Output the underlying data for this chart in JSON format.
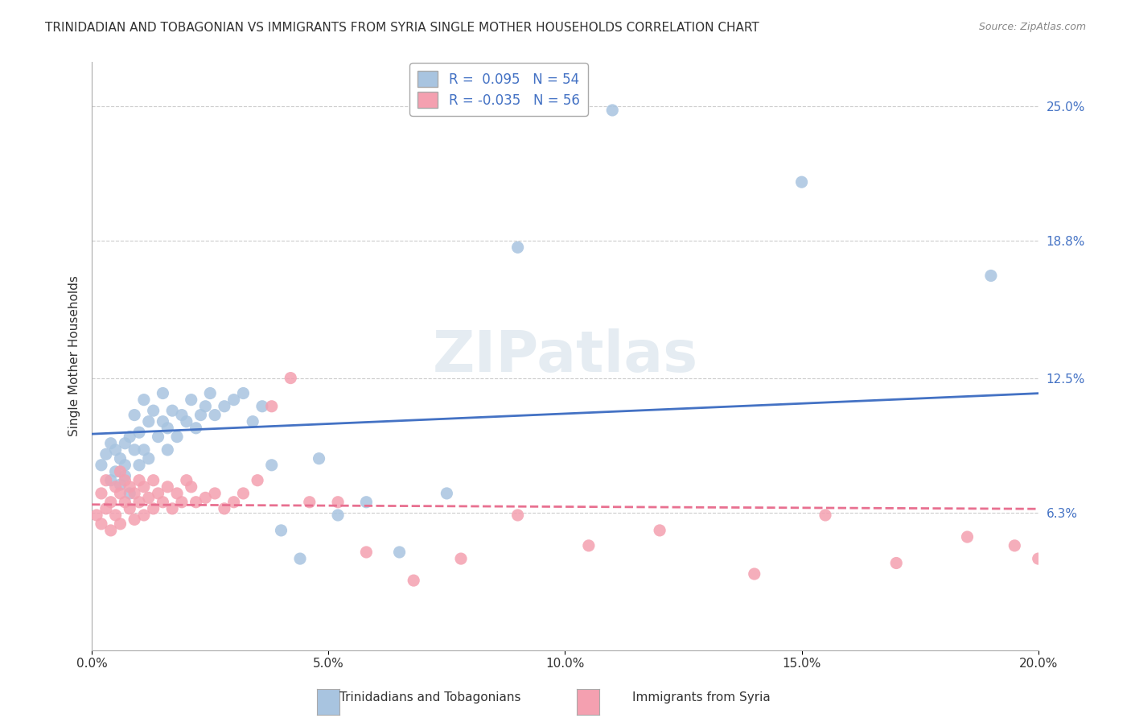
{
  "title": "TRINIDADIAN AND TOBAGONIAN VS IMMIGRANTS FROM SYRIA SINGLE MOTHER HOUSEHOLDS CORRELATION CHART",
  "source": "Source: ZipAtlas.com",
  "watermark": "ZIPatlas",
  "xlabel": "",
  "ylabel": "Single Mother Households",
  "xlim": [
    0.0,
    0.2
  ],
  "ylim": [
    0.0,
    0.27
  ],
  "xticks": [
    0.0,
    0.05,
    0.1,
    0.15,
    0.2
  ],
  "xticklabels": [
    "0.0%",
    "5.0%",
    "10.0%",
    "15.0%",
    "20.0%"
  ],
  "ytick_positions": [
    0.063,
    0.125,
    0.188,
    0.25
  ],
  "yticklabels": [
    "6.3%",
    "12.5%",
    "18.8%",
    "25.0%"
  ],
  "blue_R": 0.095,
  "blue_N": 54,
  "pink_R": -0.035,
  "pink_N": 56,
  "blue_color": "#a8c4e0",
  "pink_color": "#f4a0b0",
  "blue_line_color": "#4472c4",
  "pink_line_color": "#f4a0b0",
  "legend_label_blue": "Trinidadians and Tobagonians",
  "legend_label_pink": "Immigrants from Syria",
  "title_fontsize": 11,
  "axis_label_fontsize": 11,
  "tick_fontsize": 11,
  "legend_fontsize": 12,
  "blue_scatter_x": [
    0.002,
    0.003,
    0.004,
    0.004,
    0.005,
    0.005,
    0.006,
    0.006,
    0.007,
    0.007,
    0.007,
    0.008,
    0.008,
    0.009,
    0.009,
    0.01,
    0.01,
    0.011,
    0.011,
    0.012,
    0.012,
    0.013,
    0.014,
    0.015,
    0.015,
    0.016,
    0.016,
    0.017,
    0.018,
    0.019,
    0.02,
    0.021,
    0.022,
    0.023,
    0.024,
    0.025,
    0.026,
    0.028,
    0.03,
    0.032,
    0.034,
    0.036,
    0.038,
    0.04,
    0.044,
    0.048,
    0.052,
    0.058,
    0.065,
    0.075,
    0.09,
    0.11,
    0.15,
    0.19
  ],
  "blue_scatter_y": [
    0.085,
    0.09,
    0.095,
    0.078,
    0.082,
    0.092,
    0.088,
    0.076,
    0.095,
    0.085,
    0.08,
    0.098,
    0.072,
    0.092,
    0.108,
    0.085,
    0.1,
    0.092,
    0.115,
    0.088,
    0.105,
    0.11,
    0.098,
    0.105,
    0.118,
    0.092,
    0.102,
    0.11,
    0.098,
    0.108,
    0.105,
    0.115,
    0.102,
    0.108,
    0.112,
    0.118,
    0.108,
    0.112,
    0.115,
    0.118,
    0.105,
    0.112,
    0.085,
    0.055,
    0.042,
    0.088,
    0.062,
    0.068,
    0.045,
    0.072,
    0.185,
    0.248,
    0.215,
    0.172
  ],
  "pink_scatter_x": [
    0.001,
    0.002,
    0.002,
    0.003,
    0.003,
    0.004,
    0.004,
    0.005,
    0.005,
    0.006,
    0.006,
    0.006,
    0.007,
    0.007,
    0.008,
    0.008,
    0.009,
    0.009,
    0.01,
    0.01,
    0.011,
    0.011,
    0.012,
    0.013,
    0.013,
    0.014,
    0.015,
    0.016,
    0.017,
    0.018,
    0.019,
    0.02,
    0.021,
    0.022,
    0.024,
    0.026,
    0.028,
    0.03,
    0.032,
    0.035,
    0.038,
    0.042,
    0.046,
    0.052,
    0.058,
    0.068,
    0.078,
    0.09,
    0.105,
    0.12,
    0.14,
    0.155,
    0.17,
    0.185,
    0.195,
    0.2
  ],
  "pink_scatter_y": [
    0.062,
    0.058,
    0.072,
    0.065,
    0.078,
    0.055,
    0.068,
    0.062,
    0.075,
    0.058,
    0.072,
    0.082,
    0.068,
    0.078,
    0.065,
    0.075,
    0.06,
    0.072,
    0.068,
    0.078,
    0.062,
    0.075,
    0.07,
    0.065,
    0.078,
    0.072,
    0.068,
    0.075,
    0.065,
    0.072,
    0.068,
    0.078,
    0.075,
    0.068,
    0.07,
    0.072,
    0.065,
    0.068,
    0.072,
    0.078,
    0.112,
    0.125,
    0.068,
    0.068,
    0.045,
    0.032,
    0.042,
    0.062,
    0.048,
    0.055,
    0.035,
    0.062,
    0.04,
    0.052,
    0.048,
    0.042
  ]
}
